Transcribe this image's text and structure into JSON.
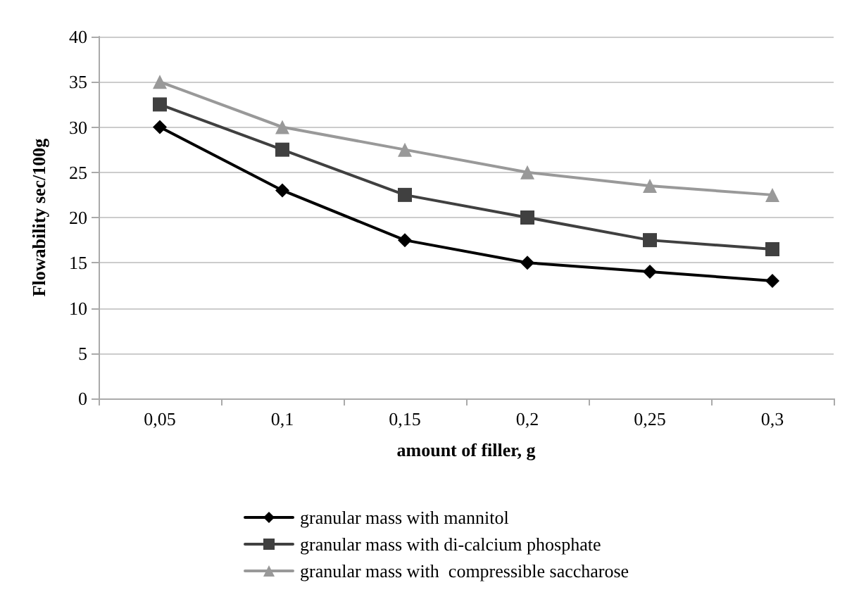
{
  "chart_data": {
    "type": "line",
    "xlabel": "amount of filler, g",
    "ylabel": "Flowability sec/100g",
    "categories": [
      "0,05",
      "0,1",
      "0,15",
      "0,2",
      "0,25",
      "0,3"
    ],
    "series": [
      {
        "name": "granular mass with mannitol",
        "color": "#000000",
        "marker": "diamond",
        "values": [
          30,
          23,
          17.5,
          15,
          14,
          13
        ]
      },
      {
        "name": "granular mass with di-calcium phosphate",
        "color": "#404040",
        "marker": "square",
        "values": [
          32.5,
          27.5,
          22.5,
          20,
          17.5,
          16.5
        ]
      },
      {
        "name": "granular mass with  compressible saccharose",
        "color": "#999999",
        "marker": "triangle",
        "values": [
          35,
          30,
          27.5,
          25,
          23.5,
          22.5
        ]
      }
    ],
    "ylim": [
      0,
      40
    ],
    "yticks": [
      0,
      5,
      10,
      15,
      20,
      25,
      30,
      35,
      40
    ],
    "grid": "y",
    "legend": "bottom"
  }
}
